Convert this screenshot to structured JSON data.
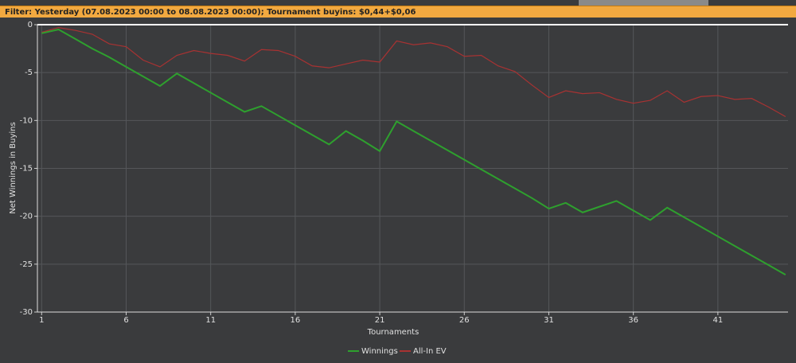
{
  "filter": "Filter: Yesterday (07.08.2023 00:00 to 08.08.2023 00:00); Tournament buyins: $0,44+$0,06",
  "chart_data": {
    "type": "line",
    "x_label": "Tournaments",
    "y_label": "Net Winnings in Buyins",
    "x": [
      1,
      2,
      3,
      4,
      5,
      6,
      7,
      8,
      9,
      10,
      11,
      12,
      13,
      14,
      15,
      16,
      17,
      18,
      19,
      20,
      21,
      22,
      23,
      24,
      25,
      26,
      27,
      28,
      29,
      30,
      31,
      32,
      33,
      34,
      35,
      36,
      37,
      38,
      39,
      40,
      41,
      42,
      43,
      44,
      45
    ],
    "series": [
      {
        "name": "Winnings",
        "color": "#2ea02e",
        "values": [
          -0.9,
          -0.5,
          -1.5,
          -2.5,
          -3.4,
          -4.4,
          -5.4,
          -6.4,
          -5.1,
          -6.1,
          -7.1,
          -8.1,
          -9.1,
          -8.5,
          -9.5,
          -10.5,
          -11.5,
          -12.5,
          -11.1,
          -12.1,
          -13.2,
          -10.1,
          -11.1,
          -12.1,
          -13.1,
          -14.1,
          -15.1,
          -16.1,
          -17.1,
          -18.1,
          -19.2,
          -18.6,
          -19.6,
          -19.0,
          -18.4,
          -19.4,
          -20.4,
          -19.1,
          -20.1,
          -21.1,
          -22.1,
          -23.1,
          -24.1,
          -25.1,
          -26.1
        ]
      },
      {
        "name": "All-In EV",
        "color": "#a83232",
        "values": [
          -0.8,
          -0.3,
          -0.6,
          -1.0,
          -2.0,
          -2.3,
          -3.7,
          -4.4,
          -3.2,
          -2.7,
          -3.0,
          -3.2,
          -3.8,
          -2.6,
          -2.7,
          -3.3,
          -4.3,
          -4.5,
          -4.1,
          -3.7,
          -3.9,
          -1.7,
          -2.1,
          -1.9,
          -2.3,
          -3.3,
          -3.2,
          -4.3,
          -4.9,
          -6.3,
          -7.6,
          -6.9,
          -7.2,
          -7.1,
          -7.8,
          -8.2,
          -7.9,
          -6.9,
          -8.1,
          -7.5,
          -7.4,
          -7.8,
          -7.7,
          -8.6,
          -9.6
        ]
      }
    ],
    "xlim": [
      0.75,
      45.15
    ],
    "xticks": [
      1,
      6,
      11,
      16,
      21,
      26,
      31,
      36,
      41
    ],
    "ylim": [
      -30,
      0
    ],
    "yticks": [
      0,
      -5,
      -10,
      -15,
      -20,
      -25,
      -30
    ],
    "grid": true
  }
}
